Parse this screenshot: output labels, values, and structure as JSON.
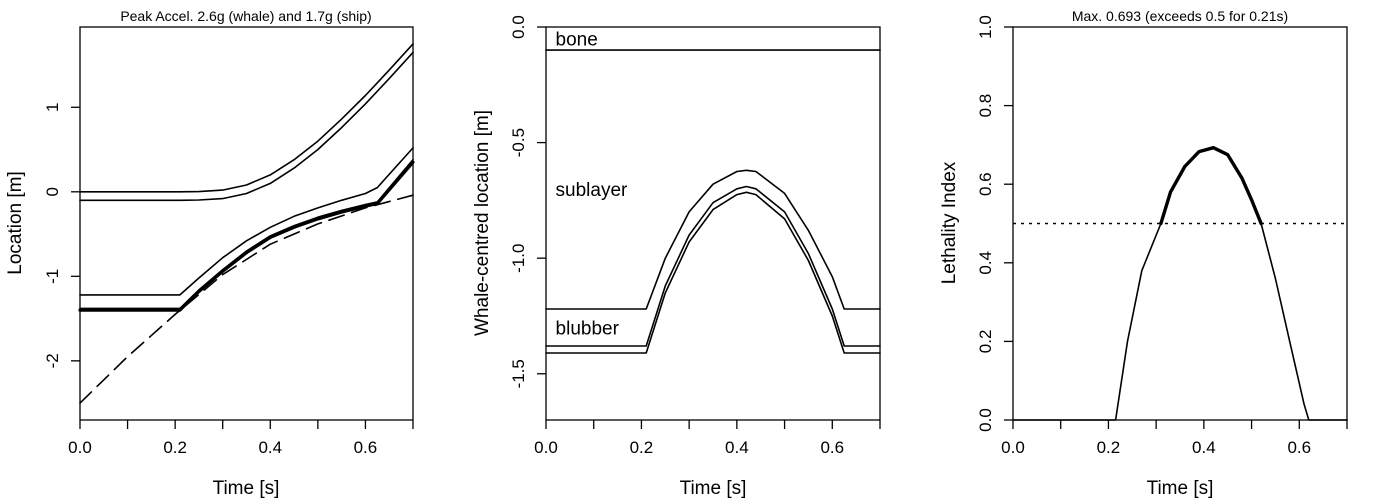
{
  "chart_data": [
    {
      "type": "line",
      "title": "Peak Accel.  2.6g (whale) and 1.7g (ship)",
      "xlabel": "Time [s]",
      "ylabel": "Location [m]",
      "xlim": [
        0,
        0.7
      ],
      "ylim": [
        -2.7,
        1.95
      ],
      "x_ticks": [
        0.0,
        0.1,
        0.2,
        0.3,
        0.4,
        0.5,
        0.6,
        0.7
      ],
      "x_tick_labels": [
        {
          "x": 0.0,
          "label": "0.0"
        },
        {
          "x": 0.2,
          "label": "0.2"
        },
        {
          "x": 0.4,
          "label": "0.4"
        },
        {
          "x": 0.6,
          "label": "0.6"
        }
      ],
      "y_tick_labels": [
        {
          "y": -2,
          "label": "-2"
        },
        {
          "y": -1,
          "label": "-1"
        },
        {
          "y": 0,
          "label": "0"
        },
        {
          "y": 1,
          "label": "1"
        }
      ],
      "grid": false,
      "series": [
        {
          "style": "solid",
          "width": 1.6,
          "x": [
            0,
            0.21,
            0.25,
            0.3,
            0.35,
            0.4,
            0.45,
            0.5,
            0.55,
            0.6,
            0.65,
            0.7
          ],
          "y": [
            0.0,
            0.0,
            0.003,
            0.02,
            0.08,
            0.2,
            0.38,
            0.6,
            0.86,
            1.14,
            1.44,
            1.75
          ]
        },
        {
          "style": "solid",
          "width": 1.6,
          "x": [
            0,
            0.21,
            0.25,
            0.3,
            0.35,
            0.4,
            0.45,
            0.5,
            0.55,
            0.6,
            0.65,
            0.7
          ],
          "y": [
            -0.1,
            -0.1,
            -0.097,
            -0.08,
            -0.02,
            0.1,
            0.28,
            0.5,
            0.76,
            1.04,
            1.34,
            1.65
          ]
        },
        {
          "style": "solid",
          "width": 1.6,
          "x": [
            0,
            0.21,
            0.25,
            0.3,
            0.35,
            0.4,
            0.45,
            0.5,
            0.55,
            0.6,
            0.625,
            0.7
          ],
          "y": [
            -1.22,
            -1.22,
            -1.02,
            -0.78,
            -0.58,
            -0.42,
            -0.29,
            -0.19,
            -0.1,
            -0.02,
            0.05,
            0.52
          ]
        },
        {
          "style": "solid",
          "width": 1.6,
          "x": [
            0,
            0.21,
            0.25,
            0.3,
            0.35,
            0.4,
            0.45,
            0.5,
            0.55,
            0.6,
            0.625,
            0.7
          ],
          "y": [
            -1.38,
            -1.38,
            -1.16,
            -0.92,
            -0.7,
            -0.52,
            -0.4,
            -0.3,
            -0.22,
            -0.15,
            -0.12,
            0.38
          ]
        },
        {
          "style": "solid",
          "width": 3.2,
          "x": [
            0,
            0.21,
            0.25,
            0.3,
            0.35,
            0.4,
            0.45,
            0.5,
            0.55,
            0.6,
            0.625,
            0.7
          ],
          "y": [
            -1.4,
            -1.4,
            -1.18,
            -0.94,
            -0.72,
            -0.54,
            -0.42,
            -0.32,
            -0.24,
            -0.17,
            -0.14,
            0.35
          ]
        },
        {
          "style": "dashed",
          "width": 1.6,
          "x": [
            0,
            0.1,
            0.2,
            0.3,
            0.4,
            0.5,
            0.6,
            0.7
          ],
          "y": [
            -2.5,
            -1.95,
            -1.45,
            -0.98,
            -0.62,
            -0.38,
            -0.19,
            -0.04
          ]
        }
      ]
    },
    {
      "type": "line",
      "title": "",
      "xlabel": "Time [s]",
      "ylabel": "Whale-centred location [m]",
      "xlim": [
        0,
        0.7
      ],
      "ylim": [
        -1.7,
        0.0
      ],
      "x_ticks": [
        0.0,
        0.1,
        0.2,
        0.3,
        0.4,
        0.5,
        0.6,
        0.7
      ],
      "x_tick_labels": [
        {
          "x": 0.0,
          "label": "0.0"
        },
        {
          "x": 0.2,
          "label": "0.2"
        },
        {
          "x": 0.4,
          "label": "0.4"
        },
        {
          "x": 0.6,
          "label": "0.6"
        }
      ],
      "y_tick_labels": [
        {
          "y": -1.5,
          "label": "-1.5"
        },
        {
          "y": -1.0,
          "label": "-1.0"
        },
        {
          "y": -0.5,
          "label": "-0.5"
        },
        {
          "y": 0.0,
          "label": "0.0"
        }
      ],
      "grid": false,
      "annotations": [
        {
          "text": "bone",
          "x": 0.02,
          "y": -0.05
        },
        {
          "text": "sublayer",
          "x": 0.02,
          "y": -0.7
        },
        {
          "text": "blubber",
          "x": 0.02,
          "y": -1.3
        }
      ],
      "series": [
        {
          "style": "solid",
          "width": 1.6,
          "x": [
            0,
            0.7
          ],
          "y": [
            -0.1,
            -0.1
          ]
        },
        {
          "style": "solid",
          "width": 1.6,
          "x": [
            0,
            0.21,
            0.25,
            0.3,
            0.35,
            0.4,
            0.42,
            0.44,
            0.5,
            0.55,
            0.6,
            0.625,
            0.7
          ],
          "y": [
            -1.22,
            -1.22,
            -1.0,
            -0.8,
            -0.68,
            -0.625,
            -0.62,
            -0.625,
            -0.72,
            -0.88,
            -1.08,
            -1.22,
            -1.22
          ]
        },
        {
          "style": "solid",
          "width": 1.6,
          "x": [
            0,
            0.21,
            0.25,
            0.3,
            0.35,
            0.4,
            0.42,
            0.44,
            0.5,
            0.55,
            0.6,
            0.625,
            0.7
          ],
          "y": [
            -1.38,
            -1.38,
            -1.12,
            -0.9,
            -0.76,
            -0.7,
            -0.69,
            -0.7,
            -0.8,
            -0.98,
            -1.22,
            -1.38,
            -1.38
          ]
        },
        {
          "style": "solid",
          "width": 1.6,
          "x": [
            0,
            0.21,
            0.25,
            0.3,
            0.35,
            0.4,
            0.42,
            0.44,
            0.5,
            0.55,
            0.6,
            0.625,
            0.7
          ],
          "y": [
            -1.41,
            -1.41,
            -1.15,
            -0.93,
            -0.79,
            -0.725,
            -0.715,
            -0.725,
            -0.83,
            -1.01,
            -1.25,
            -1.41,
            -1.41
          ]
        }
      ]
    },
    {
      "type": "line",
      "title": "Max. 0.693 (exceeds 0.5 for 0.21s)",
      "xlabel": "Time [s]",
      "ylabel": "Lethality Index",
      "xlim": [
        0,
        0.7
      ],
      "ylim": [
        0,
        1.0
      ],
      "x_ticks": [
        0.0,
        0.1,
        0.2,
        0.3,
        0.4,
        0.5,
        0.6,
        0.7
      ],
      "x_tick_labels": [
        {
          "x": 0.0,
          "label": "0.0"
        },
        {
          "x": 0.2,
          "label": "0.2"
        },
        {
          "x": 0.4,
          "label": "0.4"
        },
        {
          "x": 0.6,
          "label": "0.6"
        }
      ],
      "y_tick_labels": [
        {
          "y": 0.0,
          "label": "0.0"
        },
        {
          "y": 0.2,
          "label": "0.2"
        },
        {
          "y": 0.4,
          "label": "0.4"
        },
        {
          "y": 0.6,
          "label": "0.6"
        },
        {
          "y": 0.8,
          "label": "0.8"
        },
        {
          "y": 1.0,
          "label": "1.0"
        }
      ],
      "grid": false,
      "hlines": [
        {
          "y": 0.5,
          "style": "dotted"
        }
      ],
      "series": [
        {
          "style": "solid",
          "width": 1.6,
          "x": [
            0,
            0.21,
            0.215,
            0.24,
            0.27,
            0.31
          ],
          "y": [
            0,
            0,
            0.0,
            0.2,
            0.38,
            0.5
          ]
        },
        {
          "style": "solid",
          "width": 3.4,
          "x": [
            0.31,
            0.33,
            0.36,
            0.39,
            0.42,
            0.45,
            0.48,
            0.5,
            0.52
          ],
          "y": [
            0.5,
            0.58,
            0.645,
            0.683,
            0.693,
            0.675,
            0.615,
            0.56,
            0.5
          ]
        },
        {
          "style": "solid",
          "width": 1.6,
          "x": [
            0.52,
            0.55,
            0.58,
            0.61,
            0.62,
            0.625,
            0.7
          ],
          "y": [
            0.5,
            0.36,
            0.2,
            0.04,
            0.0,
            0,
            0
          ]
        }
      ]
    }
  ]
}
